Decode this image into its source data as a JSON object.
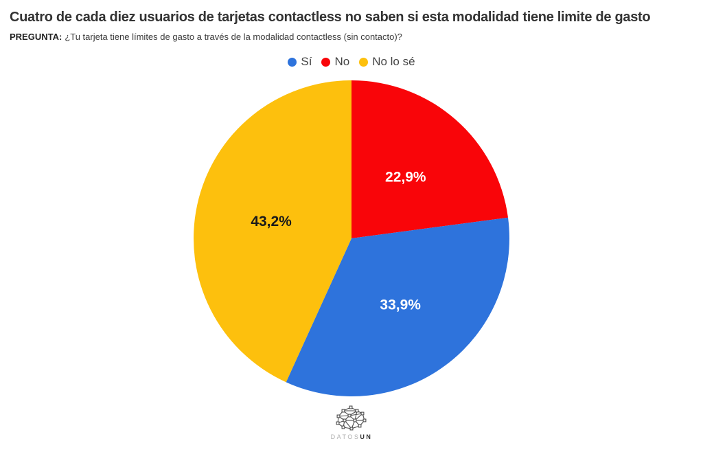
{
  "header": {
    "question_label": "PREGUNTA:",
    "question_text": "¿Tu tarjeta tiene límites de gasto a través de la modalidad contactless (sin contacto)?"
  },
  "chart_data": {
    "type": "pie",
    "title": "Cuatro de cada diez usuarios de tarjetas contactless no saben si esta modalidad tiene limite de gasto",
    "subtitle": "PREGUNTA: ¿Tu tarjeta tiene límites de gasto a través de la modalidad contactless (sin contacto)?",
    "unit": "%",
    "decimal_separator": ",",
    "start_angle_deg": 0,
    "direction": "clockwise",
    "legend_position": "top",
    "slices": [
      {
        "label": "No",
        "value": 22.9,
        "display": "22,9%",
        "color": "#F90509",
        "label_color": "#FFFFFF"
      },
      {
        "label": "Sí",
        "value": 33.9,
        "display": "33,9%",
        "color": "#2E73DC",
        "label_color": "#FFFFFF"
      },
      {
        "label": "No lo sé",
        "value": 43.2,
        "display": "43,2%",
        "color": "#FDC00D",
        "label_color": "#1A1A1A"
      }
    ],
    "legend": [
      {
        "label": "Sí",
        "color": "#2E73DC"
      },
      {
        "label": "No",
        "color": "#F90509"
      },
      {
        "label": "No lo sé",
        "color": "#FDC00D"
      }
    ]
  },
  "footer": {
    "logo_text_light": "DATOS",
    "logo_text_bold": "UN"
  }
}
